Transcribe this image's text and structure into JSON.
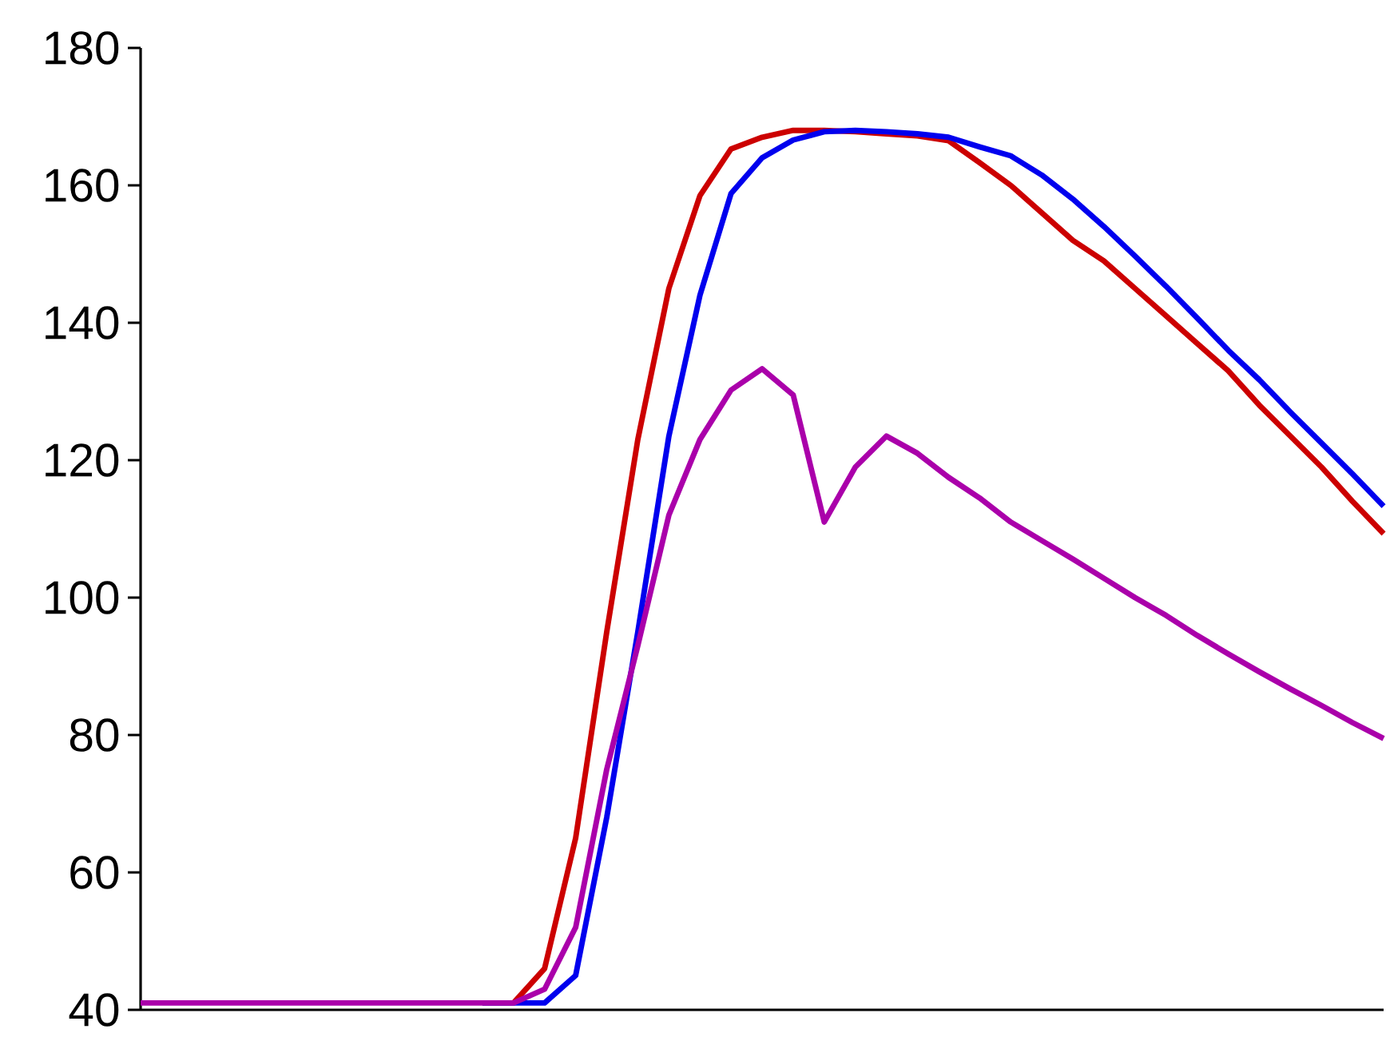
{
  "chart_data": {
    "type": "line",
    "categories": [
      null,
      null,
      null,
      null,
      null,
      null,
      null,
      null,
      null,
      null,
      null,
      null,
      null,
      null,
      null,
      null,
      null,
      null,
      null,
      null,
      null,
      null,
      null,
      null,
      null,
      null,
      null,
      null,
      null,
      null,
      null,
      null,
      null,
      null,
      null,
      null,
      null,
      null,
      null,
      null,
      null
    ],
    "series": [
      {
        "color": "#cc0000",
        "values": [
          null,
          null,
          null,
          null,
          null,
          null,
          null,
          null,
          null,
          null,
          null,
          41,
          41,
          46,
          65,
          95,
          123,
          145,
          158.5,
          165.3,
          167,
          168,
          168,
          167.8,
          167.5,
          167.2,
          166.5,
          163.3,
          160,
          156,
          152,
          149,
          145,
          141,
          137,
          133,
          128,
          123.5,
          119,
          114,
          109.3
        ]
      },
      {
        "color": "#0000ee",
        "values": [
          null,
          null,
          null,
          null,
          null,
          null,
          null,
          null,
          null,
          null,
          null,
          41,
          41,
          41,
          45,
          68,
          95,
          123.5,
          144,
          158.8,
          164,
          166.6,
          167.8,
          168,
          167.8,
          167.5,
          167,
          165.6,
          164.3,
          161.5,
          158,
          154,
          149.7,
          145.3,
          140.7,
          136,
          131.7,
          127,
          122.5,
          118,
          113.3
        ]
      },
      {
        "color": "#aa00aa",
        "values": [
          41,
          41,
          41,
          41,
          41,
          41,
          41,
          41,
          41,
          41,
          41,
          41,
          41,
          43,
          52,
          75,
          93,
          112,
          123,
          130.2,
          133.3,
          129.5,
          111,
          119,
          123.5,
          121,
          117.5,
          114.5,
          111,
          108.3,
          105.6,
          102.8,
          100,
          97.4,
          94.5,
          91.8,
          89.2,
          86.7,
          84.3,
          81.8,
          79.5
        ]
      }
    ],
    "ylim": [
      40,
      180
    ],
    "yticks": [
      40,
      60,
      80,
      100,
      120,
      140,
      160,
      180
    ],
    "tick_labels": "y",
    "grid": false,
    "marker": "none",
    "line_style": "solid"
  }
}
